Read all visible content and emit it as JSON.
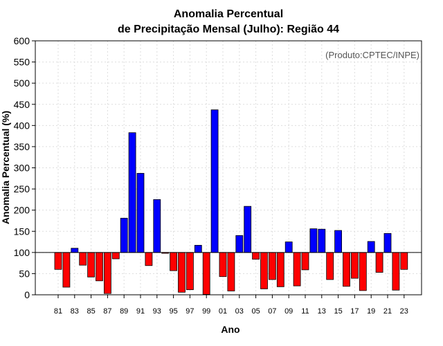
{
  "chart_data": {
    "type": "bar",
    "title_line1": "Anomalia Percentual",
    "title_line2": "de Precipitação Mensal (Julho): Região 44",
    "xlabel": "Ano",
    "ylabel": "Anomalia Percentual (%)",
    "credit": "(Produto:CPTEC/INPE)",
    "baseline": 100,
    "ylim": [
      0,
      600
    ],
    "yticks": [
      "0",
      "50",
      "100",
      "150",
      "200",
      "250",
      "300",
      "350",
      "400",
      "450",
      "500",
      "550",
      "600"
    ],
    "categories": [
      "81",
      "82",
      "83",
      "84",
      "85",
      "86",
      "87",
      "88",
      "89",
      "90",
      "91",
      "92",
      "93",
      "94",
      "95",
      "96",
      "97",
      "98",
      "99",
      "00",
      "01",
      "02",
      "03",
      "04",
      "05",
      "06",
      "07",
      "08",
      "09",
      "10",
      "11",
      "12",
      "13",
      "14",
      "15",
      "16",
      "17",
      "18",
      "19",
      "20",
      "21",
      "22",
      "23"
    ],
    "xtick_labels": [
      "81",
      "83",
      "85",
      "87",
      "89",
      "91",
      "93",
      "95",
      "97",
      "99",
      "01",
      "03",
      "05",
      "07",
      "09",
      "11",
      "13",
      "15",
      "17",
      "19",
      "21",
      "23"
    ],
    "values": [
      60,
      18,
      110,
      70,
      42,
      33,
      3,
      85,
      181,
      383,
      287,
      69,
      225,
      98,
      57,
      6,
      12,
      117,
      1,
      437,
      43,
      9,
      140,
      209,
      84,
      14,
      36,
      19,
      125,
      21,
      59,
      156,
      155,
      36,
      152,
      20,
      39,
      10,
      126,
      53,
      145,
      11,
      60
    ],
    "colors": {
      "above": "#0000ff",
      "below": "#ff0000",
      "grid": "#dddddd",
      "axis": "#000000"
    }
  }
}
